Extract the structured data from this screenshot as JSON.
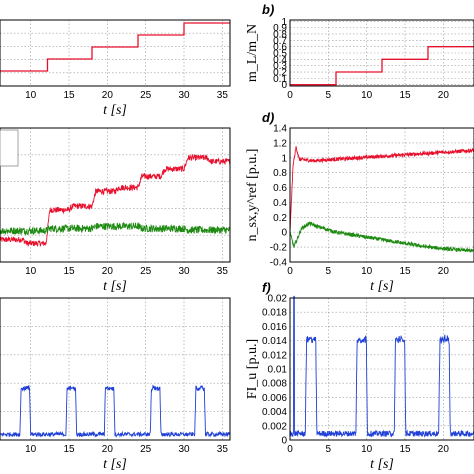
{
  "chart_data": [
    {
      "id": "a",
      "type": "line",
      "panel_label": "",
      "xlabel": "t [s]",
      "ylabel": "",
      "xticks": [
        "10",
        "15",
        "20",
        "25",
        "30",
        "35"
      ],
      "yticks": [],
      "xlim": [
        6,
        36
      ],
      "ylim": [
        -0.05,
        1.05
      ],
      "grid": true,
      "series": [
        {
          "color": "#e8112d",
          "x": [
            6,
            12.2,
            12.2,
            18,
            18,
            24,
            24,
            30,
            30,
            36
          ],
          "y": [
            0.2,
            0.2,
            0.4,
            0.4,
            0.6,
            0.6,
            0.8,
            0.8,
            1.0,
            1.0
          ]
        }
      ]
    },
    {
      "id": "b",
      "type": "line",
      "panel_label": "b)",
      "xlabel": "",
      "ylabel": "m_L/m_N",
      "xticks": [
        "0",
        "5",
        "10",
        "15",
        "20"
      ],
      "yticks": [
        "0",
        "0.1",
        "0.2",
        "0.3",
        "0.4",
        "0.5",
        "0.6",
        "0.7",
        "0.8",
        "0.9",
        "1"
      ],
      "xlim": [
        0,
        24
      ],
      "ylim": [
        -0.02,
        1.02
      ],
      "grid": true,
      "series": [
        {
          "color": "#e8112d",
          "x": [
            0,
            6,
            6,
            12,
            12,
            18,
            18,
            24
          ],
          "y": [
            0,
            0,
            0.2,
            0.2,
            0.4,
            0.4,
            0.6,
            0.6
          ]
        }
      ]
    },
    {
      "id": "c",
      "type": "line",
      "panel_label": "",
      "xlabel": "t [s]",
      "ylabel": "",
      "xticks": [
        "10",
        "15",
        "20",
        "25",
        "30",
        "35"
      ],
      "yticks": [],
      "xlim": [
        6,
        36
      ],
      "ylim": [
        -0.4,
        1.4
      ],
      "grid": true,
      "series": [
        {
          "color": "#e8112d",
          "x": [
            6,
            9,
            9.5,
            12,
            12.5,
            15,
            15.5,
            18,
            18.5,
            21,
            21.5,
            24,
            24.5,
            27,
            27.5,
            30,
            30.5,
            33,
            33.5,
            36
          ],
          "y": [
            -0.1,
            -0.1,
            -0.15,
            -0.15,
            0.3,
            0.3,
            0.35,
            0.35,
            0.55,
            0.55,
            0.6,
            0.6,
            0.75,
            0.75,
            0.85,
            0.85,
            1.0,
            1.0,
            0.95,
            0.95
          ],
          "noise": 0.04
        },
        {
          "color": "#1e8a12",
          "x": [
            6,
            12,
            12.5,
            18,
            18.5,
            24,
            24.5,
            30,
            30.5,
            36
          ],
          "y": [
            0.02,
            0.02,
            0.05,
            0.05,
            0.08,
            0.08,
            0.05,
            0.05,
            0.03,
            0.03
          ],
          "noise": 0.05
        }
      ]
    },
    {
      "id": "d",
      "type": "line",
      "panel_label": "d)",
      "xlabel": "t [s]",
      "ylabel": "n_sx,y^ref [p.u.]",
      "xticks": [
        "0",
        "5",
        "10",
        "15",
        "20"
      ],
      "yticks": [
        "-0.4",
        "-0.2",
        "0",
        "0.2",
        "0.4",
        "0.6",
        "0.8",
        "1",
        "1.2",
        "1.4"
      ],
      "xlim": [
        0,
        24
      ],
      "ylim": [
        -0.4,
        1.4
      ],
      "grid": true,
      "series": [
        {
          "color": "#e8112d",
          "x": [
            0,
            0.4,
            0.8,
            1.2,
            3,
            6,
            9,
            12,
            15,
            18,
            21,
            24
          ],
          "y": [
            0,
            0.9,
            1.15,
            0.98,
            0.96,
            0.98,
            1.0,
            1.02,
            1.04,
            1.06,
            1.08,
            1.1
          ],
          "noise": 0.025
        },
        {
          "color": "#1e8a12",
          "x": [
            0,
            0.5,
            1.5,
            2.5,
            3.5,
            6,
            9,
            12,
            15,
            18,
            21,
            24
          ],
          "y": [
            0,
            -0.2,
            0.05,
            0.12,
            0.08,
            0.0,
            -0.05,
            -0.1,
            -0.15,
            -0.2,
            -0.23,
            -0.25
          ],
          "noise": 0.025
        }
      ]
    },
    {
      "id": "e",
      "type": "line",
      "panel_label": "",
      "xlabel": "t [s]",
      "ylabel": "",
      "xticks": [
        "10",
        "15",
        "20",
        "25",
        "30",
        "35"
      ],
      "yticks": [],
      "xlim": [
        6,
        36
      ],
      "ylim": [
        0,
        0.02
      ],
      "grid": true,
      "series": [
        {
          "color": "#1f3fd6",
          "base": 0.0008,
          "pulse_height": 0.0065,
          "pulse_starts": [
            8.6,
            14.6,
            19.6,
            25.6,
            31.4
          ],
          "pulse_width": 1.4,
          "noise": 0.0003
        }
      ]
    },
    {
      "id": "f",
      "type": "line",
      "panel_label": "f)",
      "xlabel": "t [s]",
      "ylabel": "FI_u [p.u.]",
      "xticks": [
        "0",
        "5",
        "10",
        "15",
        "20"
      ],
      "yticks": [
        "0",
        "0.002",
        "0.004",
        "0.006",
        "0.008",
        "0.01",
        "0.012",
        "0.014",
        "0.016",
        "0.018",
        "0.02"
      ],
      "xlim": [
        0,
        24
      ],
      "ylim": [
        0,
        0.02
      ],
      "grid": true,
      "series": [
        {
          "color": "#1f3fd6",
          "base": 0.0009,
          "pulse_height": 0.0133,
          "pulse_starts": [
            2.0,
            8.6,
            13.6,
            19.4
          ],
          "pulse_width": 1.5,
          "spike_x": 0.5,
          "spike_y": 0.02,
          "noise": 0.0004
        }
      ]
    }
  ]
}
